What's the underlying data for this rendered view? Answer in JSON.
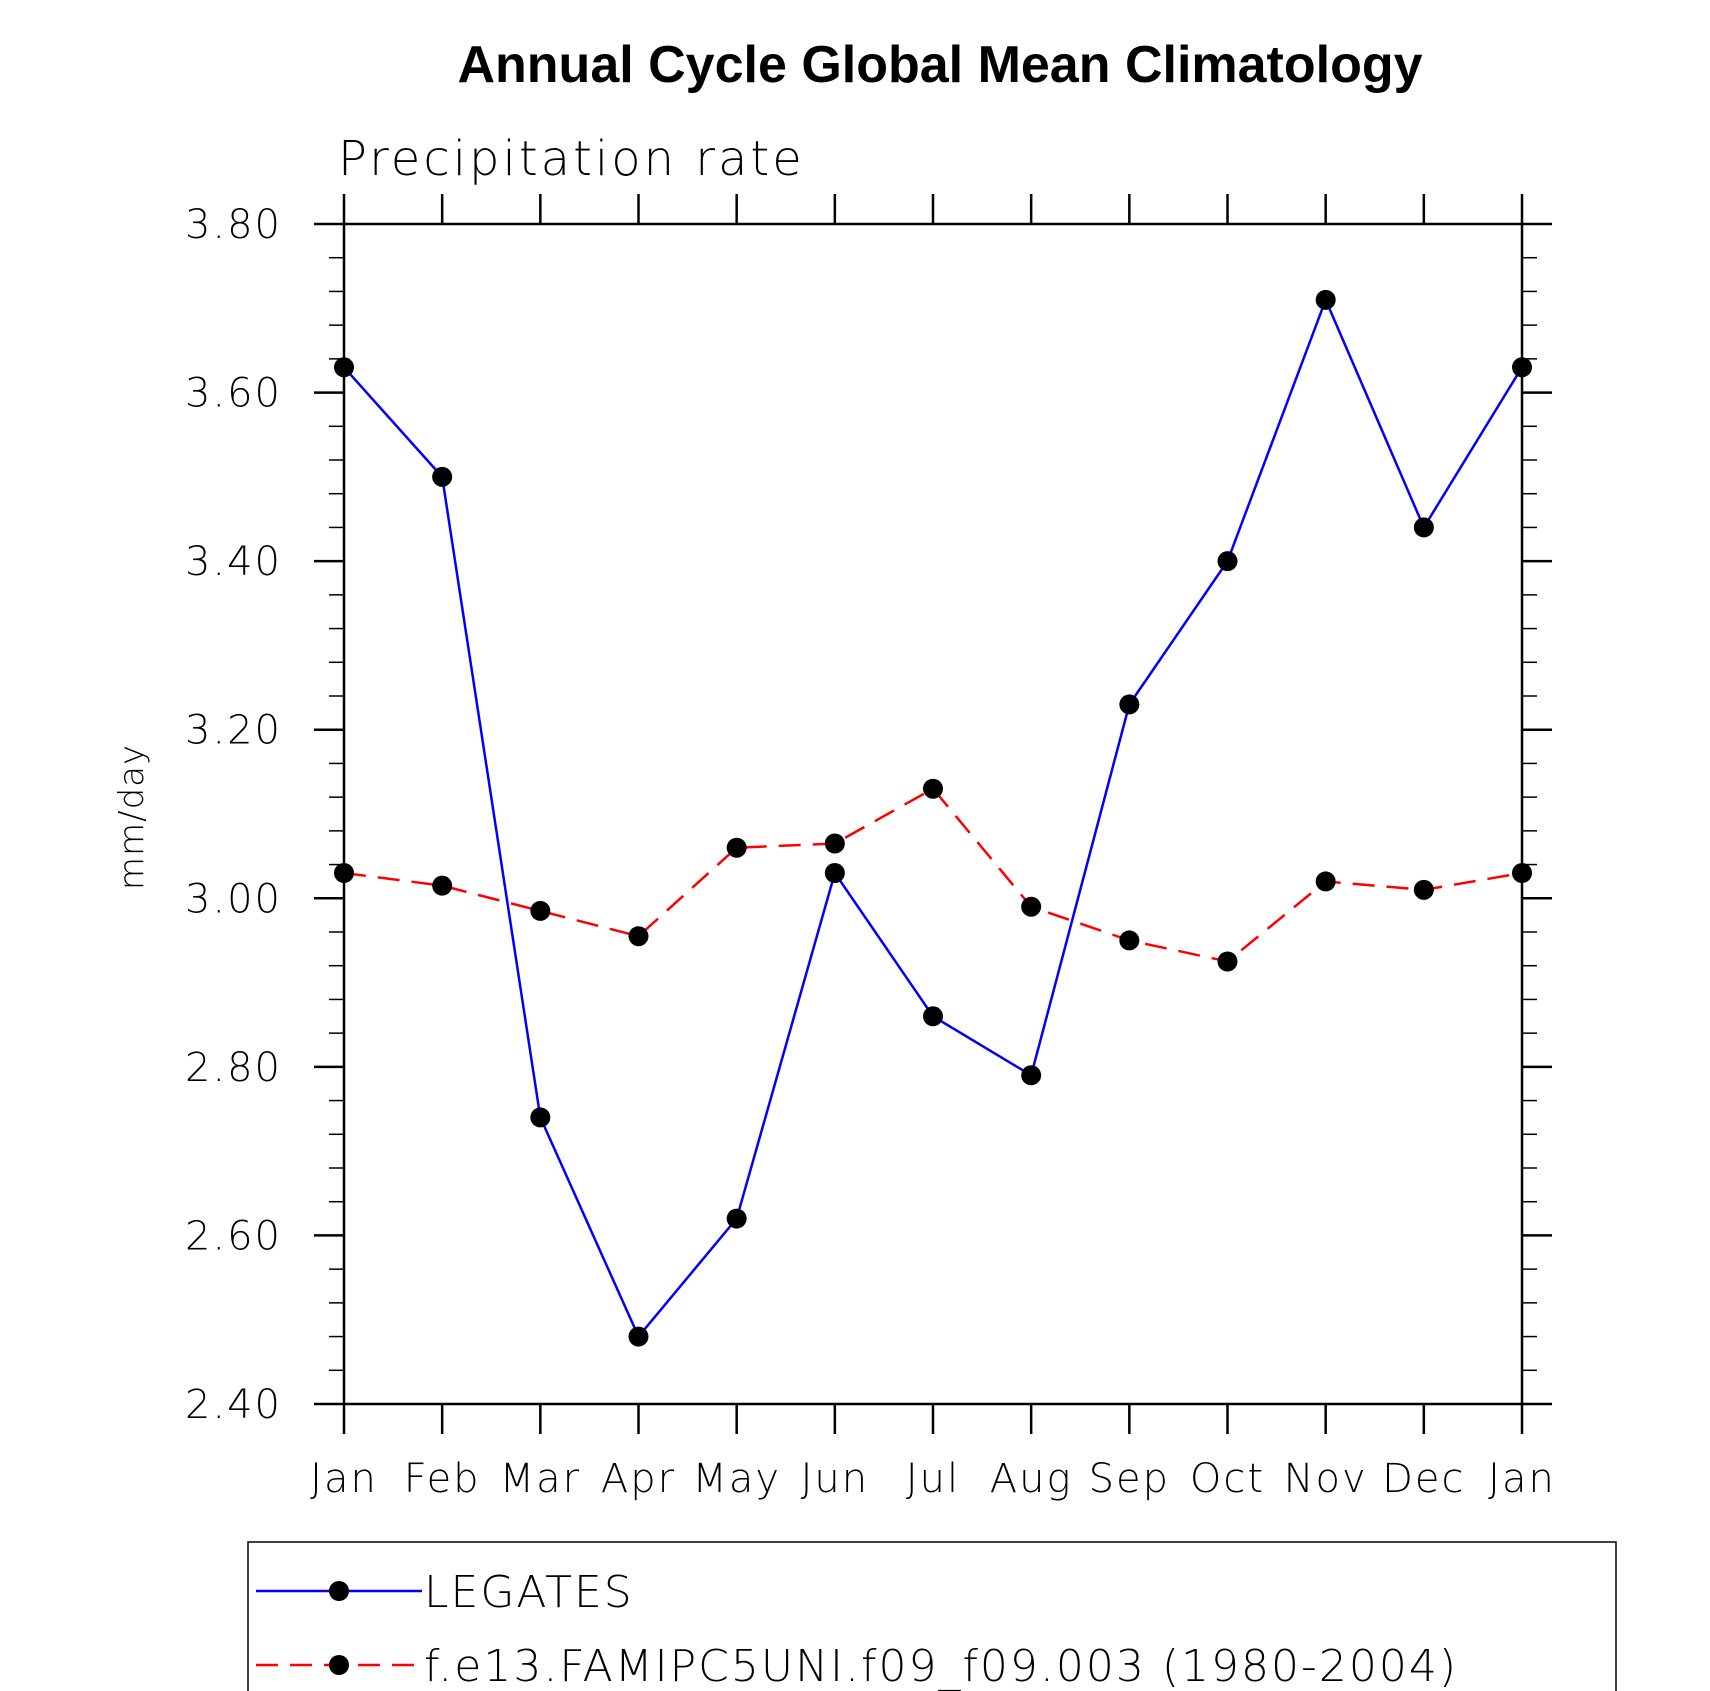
{
  "chart_data": {
    "type": "line",
    "title": "Annual Cycle Global Mean Climatology",
    "subtitle": "Precipitation rate",
    "xlabel": "",
    "ylabel": "mm/day",
    "categories": [
      "Jan",
      "Feb",
      "Mar",
      "Apr",
      "May",
      "Jun",
      "Jul",
      "Aug",
      "Sep",
      "Oct",
      "Nov",
      "Dec",
      "Jan"
    ],
    "ylim": [
      2.4,
      3.8
    ],
    "yticks": [
      "2.40",
      "2.60",
      "2.80",
      "3.00",
      "3.20",
      "3.40",
      "3.60",
      "3.80"
    ],
    "grid": false,
    "legend_position": "bottom",
    "series": [
      {
        "name": "LEGATES",
        "color": "#0000ff",
        "style": "solid",
        "marker": "circle",
        "values": [
          3.63,
          3.5,
          2.74,
          2.48,
          2.62,
          3.03,
          2.86,
          2.79,
          3.23,
          3.4,
          3.71,
          3.44,
          3.63
        ]
      },
      {
        "name": "f.e13.FAMIPC5UNI.f09_f09.003 (1980-2004)",
        "color": "#ff0000",
        "style": "dashed",
        "marker": "circle",
        "values": [
          3.03,
          3.015,
          2.985,
          2.955,
          3.06,
          3.065,
          3.13,
          2.99,
          2.95,
          2.925,
          3.02,
          3.01,
          3.03
        ]
      }
    ]
  }
}
